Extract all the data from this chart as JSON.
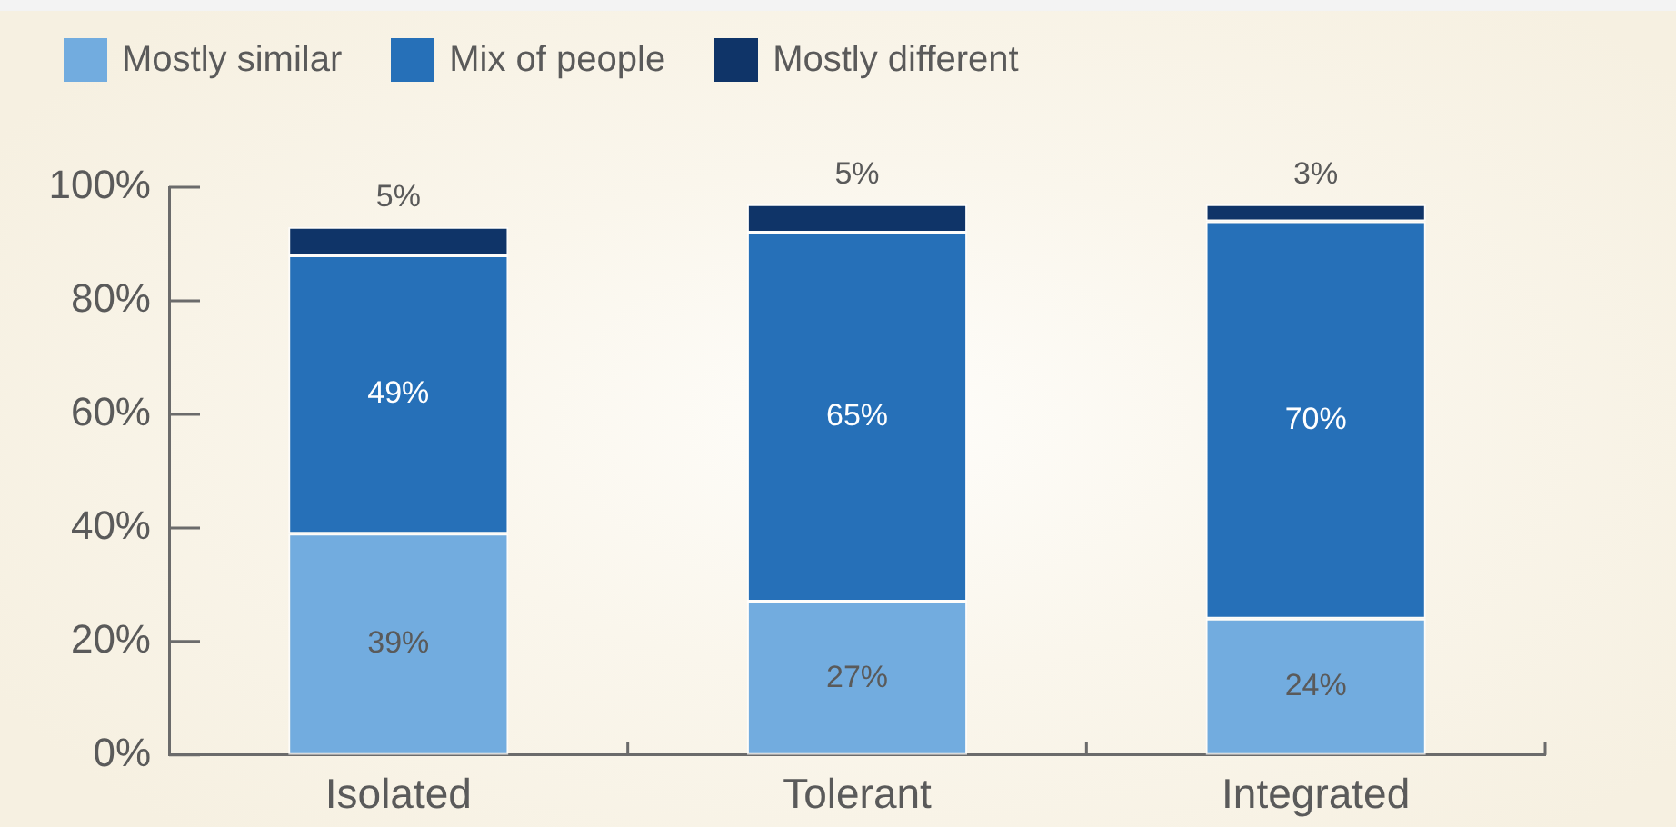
{
  "chart_data": {
    "type": "bar",
    "categories": [
      "Isolated",
      "Tolerant",
      "Integrated"
    ],
    "stacked": true,
    "series": [
      {
        "name": "Mostly similar",
        "color": "#72acdf",
        "values": [
          39,
          27,
          24
        ],
        "value_labels": [
          "39%",
          "27%",
          "24%"
        ]
      },
      {
        "name": "Mix of people",
        "color": "#2670b8",
        "values": [
          49,
          65,
          70
        ],
        "value_labels": [
          "49%",
          "65%",
          "70%"
        ]
      },
      {
        "name": "Mostly different",
        "color": "#0f3468",
        "values": [
          5,
          5,
          3
        ],
        "value_labels": [
          "5%",
          "5%",
          "3%"
        ]
      }
    ],
    "ylim": [
      0,
      100
    ],
    "yticks": [
      {
        "value": 0,
        "label": "0%"
      },
      {
        "value": 20,
        "label": "20%"
      },
      {
        "value": 40,
        "label": "40%"
      },
      {
        "value": 60,
        "label": "60%"
      },
      {
        "value": 80,
        "label": "80%"
      },
      {
        "value": 100,
        "label": "100%"
      }
    ],
    "legend": "top left"
  }
}
